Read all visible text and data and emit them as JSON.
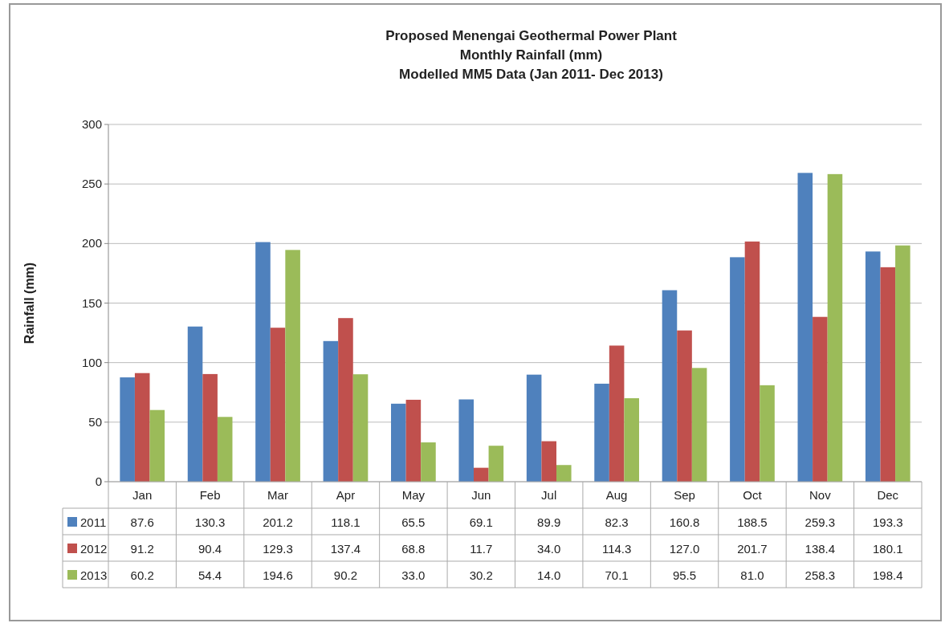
{
  "chart_data": {
    "type": "bar",
    "title": "Proposed Menengai Geothermal Power Plant",
    "subtitle": "Monthly Rainfall (mm)\nModelled MM5 Data (Jan 2011- Dec 2013)",
    "ylabel": "Rainfall (mm)",
    "categories": [
      "Jan",
      "Feb",
      "Mar",
      "Apr",
      "May",
      "Jun",
      "Jul",
      "Aug",
      "Sep",
      "Oct",
      "Nov",
      "Dec"
    ],
    "series": [
      {
        "name": "2011",
        "color": "#4f81bd",
        "values": [
          87.6,
          130.3,
          201.2,
          118.1,
          65.5,
          69.1,
          89.9,
          82.3,
          160.8,
          188.5,
          259.3,
          193.3
        ],
        "value_labels": [
          "87.6",
          "130.3",
          "201.2",
          "118.1",
          "65.5",
          "69.1",
          "89.9",
          "82.3",
          "160.8",
          "188.5",
          "259.3",
          "193.3"
        ]
      },
      {
        "name": "2012",
        "color": "#c0504d",
        "values": [
          91.2,
          90.4,
          129.3,
          137.4,
          68.8,
          11.7,
          34.0,
          114.3,
          127.0,
          201.7,
          138.4,
          180.1
        ],
        "value_labels": [
          "91.2",
          "90.4",
          "129.3",
          "137.4",
          "68.8",
          "11.7",
          "34.0",
          "114.3",
          "127.0",
          "201.7",
          "138.4",
          "180.1"
        ]
      },
      {
        "name": "2013",
        "color": "#9bbb59",
        "values": [
          60.2,
          54.4,
          194.6,
          90.2,
          33.0,
          30.2,
          14.0,
          70.1,
          95.5,
          81.0,
          258.3,
          198.4
        ],
        "value_labels": [
          "60.2",
          "54.4",
          "194.6",
          "90.2",
          "33.0",
          "30.2",
          "14.0",
          "70.1",
          "95.5",
          "81.0",
          "258.3",
          "198.4"
        ]
      }
    ],
    "ylim": [
      0,
      300
    ],
    "yticks": [
      0,
      50,
      100,
      150,
      200,
      250,
      300
    ],
    "grid": "y",
    "legend": "bottom"
  }
}
